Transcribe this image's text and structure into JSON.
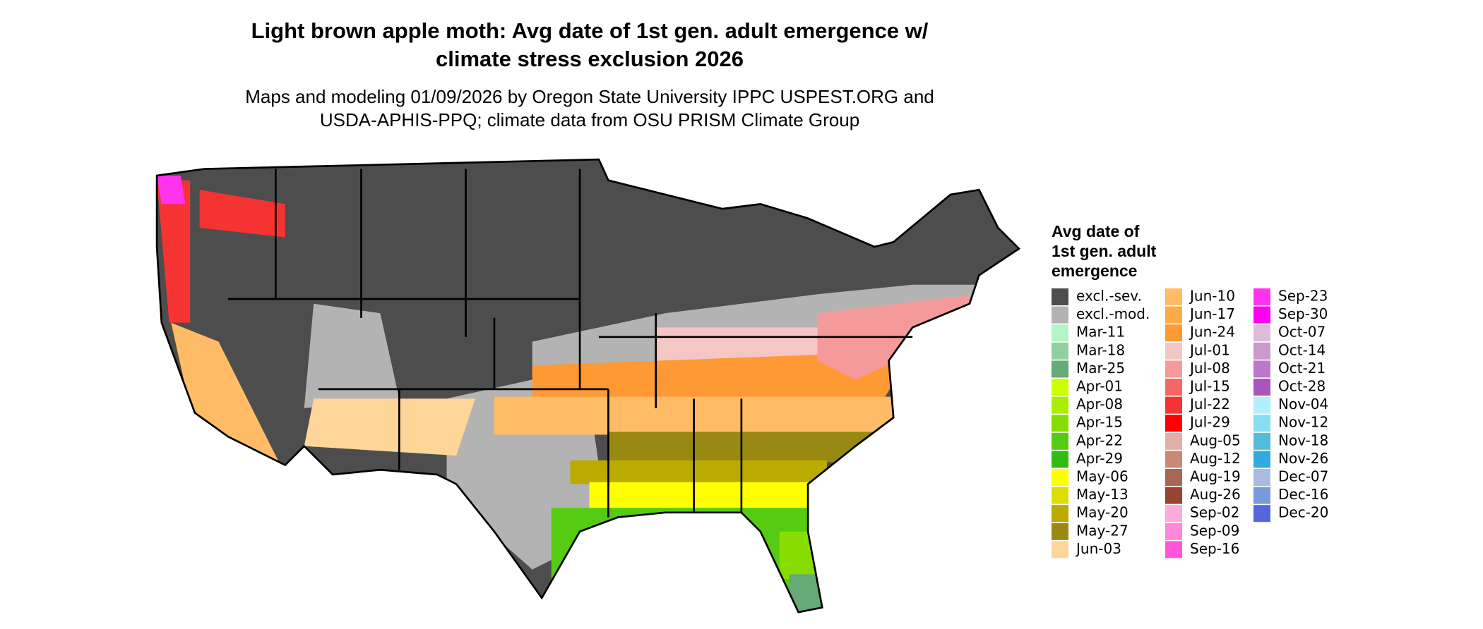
{
  "title_lines": [
    "Light brown apple moth: Avg date of 1st gen. adult emergence w/",
    "climate stress exclusion 2026"
  ],
  "subtitle_lines": [
    "Maps and modeling 01/09/2026 by Oregon State University IPPC USPEST.ORG and",
    "USDA-APHIS-PPQ; climate data from OSU PRISM Climate Group"
  ],
  "legend": {
    "title_lines": [
      "Avg date of",
      "1st gen. adult",
      "emergence"
    ],
    "items": [
      {
        "label": "excl.-sev.",
        "color": "#4d4d4d"
      },
      {
        "label": "excl.-mod.",
        "color": "#b3b3b3"
      },
      {
        "label": "Mar-11",
        "color": "#b3f5c4"
      },
      {
        "label": "Mar-18",
        "color": "#8fd19e"
      },
      {
        "label": "Mar-25",
        "color": "#66aa77"
      },
      {
        "label": "Apr-01",
        "color": "#ccff00"
      },
      {
        "label": "Apr-08",
        "color": "#aaee00"
      },
      {
        "label": "Apr-15",
        "color": "#88dd00"
      },
      {
        "label": "Apr-22",
        "color": "#55cc11"
      },
      {
        "label": "Apr-29",
        "color": "#33bb11"
      },
      {
        "label": "May-06",
        "color": "#ffff00"
      },
      {
        "label": "May-13",
        "color": "#dddd00"
      },
      {
        "label": "May-20",
        "color": "#bbaa00"
      },
      {
        "label": "May-27",
        "color": "#998811"
      },
      {
        "label": "Jun-03",
        "color": "#ffd699"
      },
      {
        "label": "Jun-10",
        "color": "#ffbb66"
      },
      {
        "label": "Jun-17",
        "color": "#ffaa44"
      },
      {
        "label": "Jun-24",
        "color": "#ff9933"
      },
      {
        "label": "Jul-01",
        "color": "#f5c6c6"
      },
      {
        "label": "Jul-08",
        "color": "#f59a9a"
      },
      {
        "label": "Jul-15",
        "color": "#f56666"
      },
      {
        "label": "Jul-22",
        "color": "#f53333"
      },
      {
        "label": "Jul-29",
        "color": "#ff0000"
      },
      {
        "label": "Aug-05",
        "color": "#e0b0a8"
      },
      {
        "label": "Aug-12",
        "color": "#cc8877"
      },
      {
        "label": "Aug-19",
        "color": "#aa6655"
      },
      {
        "label": "Aug-26",
        "color": "#994433"
      },
      {
        "label": "Sep-02",
        "color": "#ffaadd"
      },
      {
        "label": "Sep-09",
        "color": "#ff88dd"
      },
      {
        "label": "Sep-16",
        "color": "#ff55dd"
      },
      {
        "label": "Sep-23",
        "color": "#ff33ee"
      },
      {
        "label": "Sep-30",
        "color": "#ff00ee"
      },
      {
        "label": "Oct-07",
        "color": "#ddbbdd"
      },
      {
        "label": "Oct-14",
        "color": "#cc99cc"
      },
      {
        "label": "Oct-21",
        "color": "#bb77cc"
      },
      {
        "label": "Oct-28",
        "color": "#aa55bb"
      },
      {
        "label": "Nov-04",
        "color": "#b3eeff"
      },
      {
        "label": "Nov-12",
        "color": "#88ddee"
      },
      {
        "label": "Nov-18",
        "color": "#55bbdd"
      },
      {
        "label": "Nov-26",
        "color": "#33aadd"
      },
      {
        "label": "Dec-07",
        "color": "#aabbdd"
      },
      {
        "label": "Dec-16",
        "color": "#7799dd"
      },
      {
        "label": "Dec-20",
        "color": "#5566dd"
      }
    ]
  }
}
